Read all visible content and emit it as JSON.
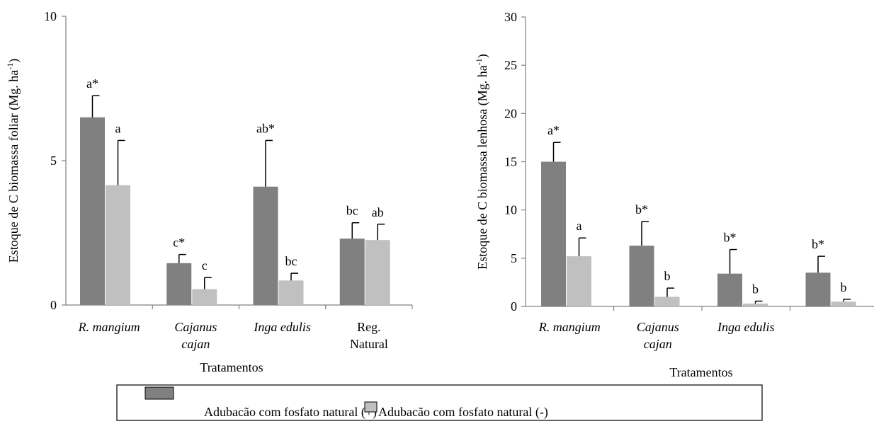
{
  "colors": {
    "with_phosphate": "#808080",
    "without_phosphate": "#c0c0c0",
    "error_bar": "#000000",
    "axis": "#808080"
  },
  "legend": {
    "items": [
      {
        "label": "Adubacão com fosfato natural (+)"
      },
      {
        "label": "Adubacão com fosfato natural (-)"
      }
    ]
  },
  "chart_data": [
    {
      "type": "bar",
      "ylabel": "Estoque de C biomassa foliar (Mg. ha-1)",
      "ylabel_main": "Estoque de C biomassa foliar (Mg. ha",
      "ylabel_sup": "-1",
      "ylabel_end": ")",
      "xlabel": "Tratamentos",
      "ylim": [
        0,
        10
      ],
      "yticks": [
        "0",
        "5",
        "10"
      ],
      "categories": [
        {
          "lines": [
            "R. mangium"
          ],
          "italic": true
        },
        {
          "lines": [
            "Cajanus",
            "cajan"
          ],
          "italic": true
        },
        {
          "lines": [
            "Inga edulis"
          ],
          "italic": true
        },
        {
          "lines": [
            "Reg.",
            "Natural"
          ],
          "italic": false
        }
      ],
      "series": [
        {
          "values": [
            6.5,
            1.45,
            4.1,
            2.3
          ],
          "errors": [
            0.75,
            0.3,
            1.6,
            0.55
          ],
          "sig": [
            "a*",
            "c*",
            "ab*",
            "bc"
          ]
        },
        {
          "values": [
            4.15,
            0.55,
            0.85,
            2.25
          ],
          "errors": [
            1.55,
            0.4,
            0.25,
            0.55
          ],
          "sig": [
            "a",
            "c",
            "bc",
            "ab"
          ]
        }
      ]
    },
    {
      "type": "bar",
      "ylabel": "Estoque de C biomassa lenhosa (Mg. ha-1)",
      "ylabel_main": "Estoque de C biomassa lenhosa (Mg. ha",
      "ylabel_sup": "-1",
      "ylabel_end": ")",
      "xlabel": "Tratamentos",
      "ylim": [
        0,
        30
      ],
      "yticks": [
        "0",
        "5",
        "10",
        "15",
        "20",
        "25",
        "30"
      ],
      "categories": [
        {
          "lines": [
            "R. mangium"
          ],
          "italic": true
        },
        {
          "lines": [
            "Cajanus",
            "cajan"
          ],
          "italic": true
        },
        {
          "lines": [
            "Inga edulis"
          ],
          "italic": true
        },
        {
          "lines": [],
          "italic": false
        }
      ],
      "series": [
        {
          "values": [
            15.0,
            6.3,
            3.4,
            3.5
          ],
          "errors": [
            2.0,
            2.5,
            2.5,
            1.7
          ],
          "sig": [
            "a*",
            "b*",
            "b*",
            "b*"
          ]
        },
        {
          "values": [
            5.2,
            1.0,
            0.3,
            0.5
          ],
          "errors": [
            1.9,
            0.9,
            0.25,
            0.25
          ],
          "sig": [
            "a",
            "b",
            "b",
            "b"
          ]
        }
      ]
    }
  ]
}
